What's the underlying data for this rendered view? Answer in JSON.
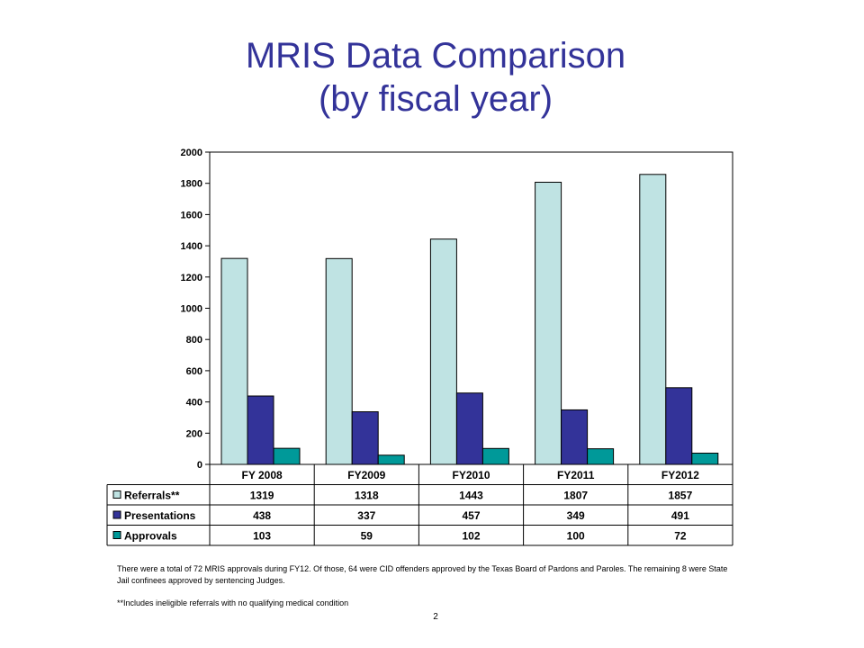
{
  "slide": {
    "title_line1": "MRIS Data Comparison",
    "title_line2": "(by fiscal year)",
    "note1": "There were a total of 72 MRIS approvals during FY12.  Of those, 64  were CID offenders approved by the Texas Board of Pardons and Paroles.  The remaining 8 were State Jail confinees approved by sentencing Judges.",
    "note2": "**Includes ineligible referrals with no qualifying medical condition",
    "page_number": "2"
  },
  "chart_data": {
    "type": "bar",
    "title": "",
    "xlabel": "",
    "ylabel": "",
    "categories": [
      "FY 2008",
      "FY2009",
      "FY2010",
      "FY2011",
      "FY2012"
    ],
    "ylim": [
      0,
      2000
    ],
    "yticks": [
      0,
      200,
      400,
      600,
      800,
      1000,
      1200,
      1400,
      1600,
      1800,
      2000
    ],
    "grid": false,
    "legend": "data-table-left",
    "series": [
      {
        "name": "Referrals**",
        "color": "#bfe3e3",
        "values": [
          1319,
          1318,
          1443,
          1807,
          1857
        ]
      },
      {
        "name": "Presentations",
        "color": "#333399",
        "values": [
          438,
          337,
          457,
          349,
          491
        ]
      },
      {
        "name": "Approvals",
        "color": "#009999",
        "values": [
          103,
          59,
          102,
          100,
          72
        ]
      }
    ]
  }
}
